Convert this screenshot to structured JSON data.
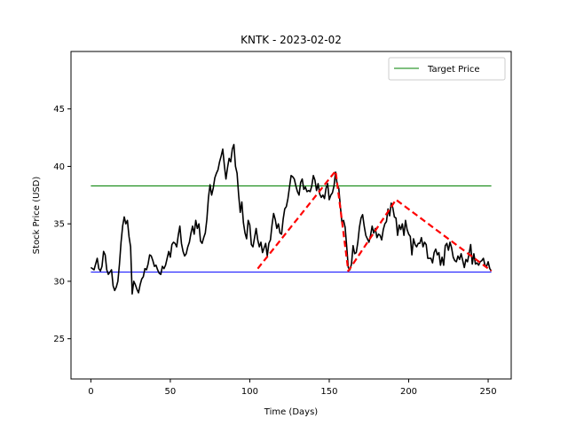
{
  "chart_data": {
    "type": "line",
    "title": "KNTK - 2023-02-02",
    "xlabel": "Time (Days)",
    "ylabel": "Stock Price (USD)",
    "xlim": [
      -12.5,
      264.5
    ],
    "ylim": [
      21.5,
      50.0
    ],
    "xticks": [
      0,
      50,
      100,
      150,
      200,
      250
    ],
    "yticks": [
      25,
      30,
      35,
      40,
      45
    ],
    "grid": false,
    "legend_position": "top-right",
    "legend": [
      "Target Price"
    ],
    "series": [
      {
        "color": "#000000",
        "style": "solid",
        "x": [
          0,
          2,
          3,
          4,
          5,
          6,
          7,
          8,
          9,
          10,
          11,
          12,
          13,
          14,
          15,
          16,
          17,
          18,
          19,
          20,
          21,
          22,
          23,
          24,
          25,
          26,
          27,
          28,
          29,
          30,
          31,
          32,
          33,
          34,
          35,
          36,
          37,
          38,
          39,
          40,
          41,
          42,
          43,
          44,
          45,
          46,
          47,
          48,
          49,
          50,
          51,
          52,
          53,
          54,
          55,
          56,
          57,
          58,
          59,
          60,
          61,
          62,
          63,
          64,
          65,
          66,
          67,
          68,
          69,
          70,
          71,
          72,
          73,
          74,
          75,
          76,
          77,
          78,
          79,
          80,
          81,
          82,
          83,
          84,
          85,
          86,
          87,
          88,
          89,
          90,
          91,
          92,
          93,
          94,
          95,
          96,
          97,
          98,
          99,
          100,
          101,
          102,
          103,
          104,
          105,
          106,
          107,
          108,
          109,
          110,
          111,
          112,
          113,
          114,
          115,
          116,
          117,
          118,
          119,
          120,
          121,
          122,
          123,
          124,
          125,
          126,
          127,
          128,
          129,
          130,
          131,
          132,
          133,
          134,
          135,
          136,
          137,
          138,
          139,
          140,
          141,
          142,
          143,
          144,
          145,
          146,
          147,
          148,
          149,
          150,
          151,
          152,
          153,
          154,
          155,
          156,
          157,
          158,
          159,
          160,
          161,
          162,
          163,
          164,
          165,
          166,
          167,
          168,
          169,
          170,
          171,
          172,
          173,
          174,
          175,
          176,
          177,
          178,
          179,
          180,
          181,
          182,
          183,
          184,
          185,
          186,
          187,
          188,
          189,
          190,
          191,
          192,
          193,
          194,
          195,
          196,
          197,
          198,
          199,
          200,
          201,
          202,
          203,
          204,
          205,
          206,
          207,
          208,
          209,
          210,
          211,
          212,
          213,
          214,
          215,
          216,
          217,
          218,
          219,
          220,
          221,
          222,
          223,
          224,
          225,
          226,
          227,
          228,
          229,
          230,
          231,
          232,
          233,
          234,
          235,
          236,
          237,
          238,
          239,
          240,
          241,
          242,
          243,
          244,
          245,
          246,
          247,
          248,
          249,
          250,
          251,
          252
        ],
        "y": [
          31.2,
          31.0,
          31.5,
          32.0,
          31.1,
          30.9,
          31.3,
          32.6,
          32.3,
          31.0,
          30.6,
          30.8,
          31.0,
          29.6,
          29.2,
          29.5,
          30.0,
          31.5,
          33.4,
          34.8,
          35.6,
          35.0,
          35.3,
          33.9,
          33.0,
          28.9,
          30.0,
          29.7,
          29.3,
          29.0,
          29.7,
          30.2,
          30.4,
          31.1,
          31.0,
          31.5,
          32.3,
          32.2,
          31.8,
          31.3,
          31.4,
          31.0,
          30.7,
          30.6,
          31.3,
          31.1,
          31.4,
          32.0,
          32.6,
          32.1,
          33.2,
          33.4,
          33.3,
          33.0,
          34.0,
          34.8,
          33.3,
          32.6,
          32.2,
          32.4,
          33.0,
          33.4,
          34.2,
          34.8,
          34.1,
          35.3,
          34.6,
          35.0,
          33.5,
          33.3,
          33.8,
          34.2,
          35.4,
          37.3,
          38.4,
          37.5,
          38.1,
          39.0,
          39.4,
          39.7,
          40.4,
          40.9,
          41.5,
          40.1,
          38.9,
          39.9,
          40.7,
          40.4,
          41.5,
          41.9,
          40.0,
          39.4,
          37.5,
          36.0,
          36.9,
          35.1,
          34.2,
          33.7,
          35.3,
          34.9,
          33.2,
          33.0,
          33.8,
          34.6,
          33.6,
          33.0,
          33.4,
          32.5,
          32.9,
          33.3,
          32.2,
          33.3,
          33.6,
          34.9,
          35.9,
          35.4,
          34.6,
          35.0,
          34.2,
          34.1,
          35.4,
          36.3,
          36.5,
          37.2,
          38.2,
          39.2,
          39.1,
          38.9,
          38.3,
          37.8,
          37.5,
          38.6,
          38.9,
          38.0,
          38.2,
          37.8,
          37.9,
          37.8,
          38.3,
          39.2,
          38.8,
          37.9,
          38.5,
          37.6,
          37.3,
          37.5,
          37.2,
          38.1,
          38.5,
          37.1,
          37.5,
          37.7,
          38.3,
          39.5,
          38.4,
          38.1,
          36.5,
          35.1,
          35.3,
          34.7,
          33.0,
          31.2,
          31.0,
          31.5,
          33.1,
          32.4,
          32.5,
          33.4,
          34.7,
          35.5,
          35.8,
          34.8,
          34.0,
          33.7,
          33.4,
          34.0,
          34.8,
          34.2,
          34.6,
          33.8,
          34.1,
          34.0,
          33.6,
          34.5,
          35.0,
          35.2,
          36.3,
          35.7,
          36.8,
          36.4,
          35.6,
          35.5,
          34.0,
          34.9,
          34.5,
          35.0,
          34.0,
          35.3,
          34.5,
          34.1,
          33.9,
          32.3,
          33.7,
          33.2,
          33.0,
          33.3,
          33.3,
          33.8,
          33.0,
          33.4,
          33.2,
          32.0,
          32.0,
          32.0,
          31.6,
          32.5,
          32.8,
          32.3,
          32.5,
          31.4,
          32.1,
          31.4,
          33.1,
          33.3,
          32.7,
          33.4,
          32.9,
          32.1,
          31.8,
          31.7,
          32.2,
          31.9,
          32.4,
          31.8,
          31.2,
          31.9,
          31.7,
          32.4,
          33.2,
          31.5,
          32.4,
          31.5,
          31.6,
          31.4,
          31.7,
          31.8,
          32.0,
          31.4,
          31.3,
          31.7,
          31.1,
          30.9
        ]
      },
      {
        "color": "#ff0000",
        "style": "dashed",
        "x": [
          105,
          154,
          162,
          192,
          252
        ],
        "y": [
          31.1,
          39.6,
          30.9,
          37.1,
          30.9
        ]
      },
      {
        "name": "Target Price",
        "color": "#008000",
        "style": "solid",
        "x": [
          0,
          252
        ],
        "y": [
          38.3,
          38.3
        ]
      },
      {
        "color": "#0000ff",
        "style": "solid",
        "x": [
          0,
          252
        ],
        "y": [
          30.8,
          30.8
        ]
      }
    ]
  }
}
